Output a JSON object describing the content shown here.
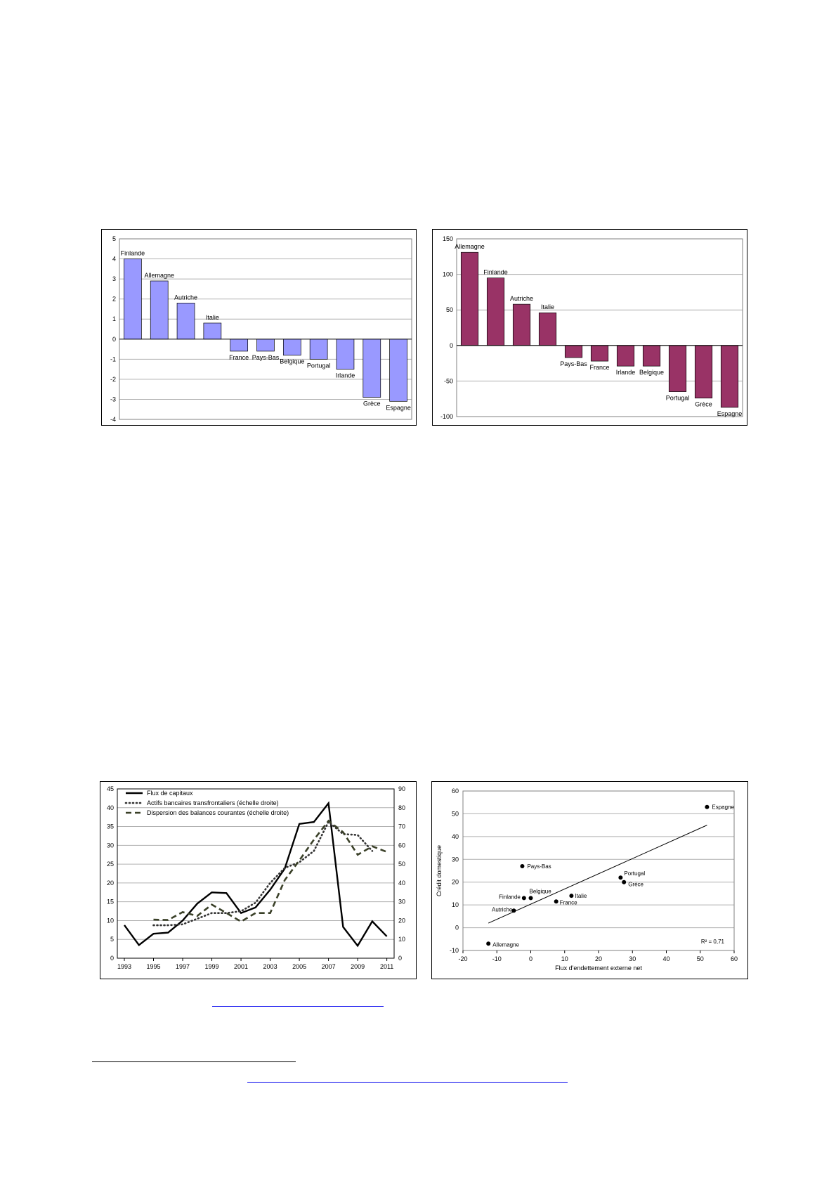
{
  "colors": {
    "bar_blue": "#9999ff",
    "bar_purple": "#993366",
    "grid": "#b0b0b0",
    "line_main": "#000000",
    "dotted": "#333333",
    "dashed": "#3a4028",
    "link": "#0000ee"
  },
  "charts": [
    {
      "id": "chart1",
      "chart_data": {
        "type": "bar",
        "categories": [
          "Finlande",
          "Allemagne",
          "Autriche",
          "Italie",
          "France",
          "Pays-Bas",
          "Belgique",
          "Portugal",
          "Irlande",
          "Grèce",
          "Espagne"
        ],
        "values": [
          4.0,
          2.9,
          1.8,
          0.8,
          -0.6,
          -0.6,
          -0.8,
          -1.0,
          -1.5,
          -2.9,
          -3.1
        ],
        "ylim": [
          -4,
          5
        ],
        "yticks": [
          "5",
          "4",
          "3",
          "2",
          "1",
          "0",
          "-1",
          "-2",
          "-3",
          "-4"
        ],
        "grid": true,
        "color": "#9999ff"
      }
    },
    {
      "id": "chart2",
      "chart_data": {
        "type": "bar",
        "categories": [
          "Allemagne",
          "Finlande",
          "Autriche",
          "Italie",
          "Pays-Bas",
          "France",
          "Irlande",
          "Belgique",
          "Portugal",
          "Grèce",
          "Espagne"
        ],
        "values": [
          131,
          95,
          58,
          46,
          -17,
          -22,
          -29,
          -29,
          -65,
          -74,
          -87
        ],
        "ylim": [
          -100,
          150
        ],
        "yticks": [
          "150",
          "100",
          "50",
          "0",
          "-50",
          "-100"
        ],
        "grid": true,
        "color": "#993366"
      }
    },
    {
      "id": "chart3",
      "chart_data": {
        "type": "line",
        "x": [
          1993,
          1994,
          1995,
          1996,
          1997,
          1998,
          1999,
          2000,
          2001,
          2002,
          2003,
          2004,
          2005,
          2006,
          2007,
          2008,
          2009,
          2010,
          2011
        ],
        "series": [
          {
            "name": "Flux de capitaux",
            "axis": "left",
            "style": "solid",
            "values": [
              8.8,
              3.5,
              6.5,
              6.8,
              10,
              14.5,
              17.5,
              17.3,
              12,
              13.5,
              18.2,
              23.8,
              35.7,
              36.2,
              41.2,
              8.3,
              3.3,
              9.8,
              5.8
            ]
          },
          {
            "name": "Actifs bancaires transfrontaliers (échelle droite)",
            "axis": "right",
            "style": "dotted",
            "values": [
              null,
              null,
              17.5,
              17.5,
              18,
              21,
              24,
              24,
              25,
              29.5,
              40,
              48,
              51,
              57,
              72.5,
              66,
              65.5,
              57,
              null
            ]
          },
          {
            "name": "Dispersion des balances courantes (échelle droite)",
            "axis": "right",
            "style": "dashed",
            "values": [
              null,
              null,
              20.5,
              20.3,
              24.5,
              22.5,
              28.5,
              24,
              19.5,
              24,
              24,
              41.5,
              52,
              63,
              73,
              67,
              55,
              59.5,
              56.5
            ]
          }
        ],
        "ylim_left": [
          0,
          45
        ],
        "ylim_right": [
          0,
          90
        ],
        "yticks_left": [
          "45",
          "40",
          "35",
          "30",
          "25",
          "20",
          "15",
          "10",
          "5",
          "0"
        ],
        "yticks_right": [
          "90",
          "80",
          "70",
          "60",
          "50",
          "40",
          "30",
          "20",
          "10",
          "0"
        ],
        "xticks": [
          "1993",
          "1995",
          "1997",
          "1999",
          "2001",
          "2003",
          "2005",
          "2007",
          "2009",
          "2011"
        ],
        "legend_position": "top-left",
        "grid": true
      }
    },
    {
      "id": "chart4",
      "chart_data": {
        "type": "scatter",
        "points": [
          {
            "label": "Espagne",
            "x": 52,
            "y": 53
          },
          {
            "label": "Pays-Bas",
            "x": -2.5,
            "y": 27
          },
          {
            "label": "Portugal",
            "x": 26.5,
            "y": 22
          },
          {
            "label": "Grèce",
            "x": 27.5,
            "y": 20
          },
          {
            "label": "Belgique",
            "x": 0,
            "y": 13
          },
          {
            "label": "Finlande",
            "x": -2,
            "y": 13
          },
          {
            "label": "Italie",
            "x": 12,
            "y": 14
          },
          {
            "label": "France",
            "x": 7.5,
            "y": 11.5
          },
          {
            "label": "Autriche",
            "x": -5,
            "y": 7.5
          },
          {
            "label": "Allemagne",
            "x": -12.5,
            "y": -7
          }
        ],
        "trendline": {
          "from": [
            -12.5,
            2
          ],
          "to": [
            52,
            45
          ]
        },
        "r2_label": "R² = 0,71",
        "xlim": [
          -20,
          60
        ],
        "ylim": [
          -10,
          60
        ],
        "xticks": [
          "-20",
          "-10",
          "0",
          "10",
          "20",
          "30",
          "40",
          "50",
          "60"
        ],
        "yticks": [
          "60",
          "50",
          "40",
          "30",
          "20",
          "10",
          "0",
          "-10"
        ],
        "xlabel": "Flux d'endettement externe net",
        "ylabel": "Crédit domestique",
        "grid": true
      }
    }
  ]
}
